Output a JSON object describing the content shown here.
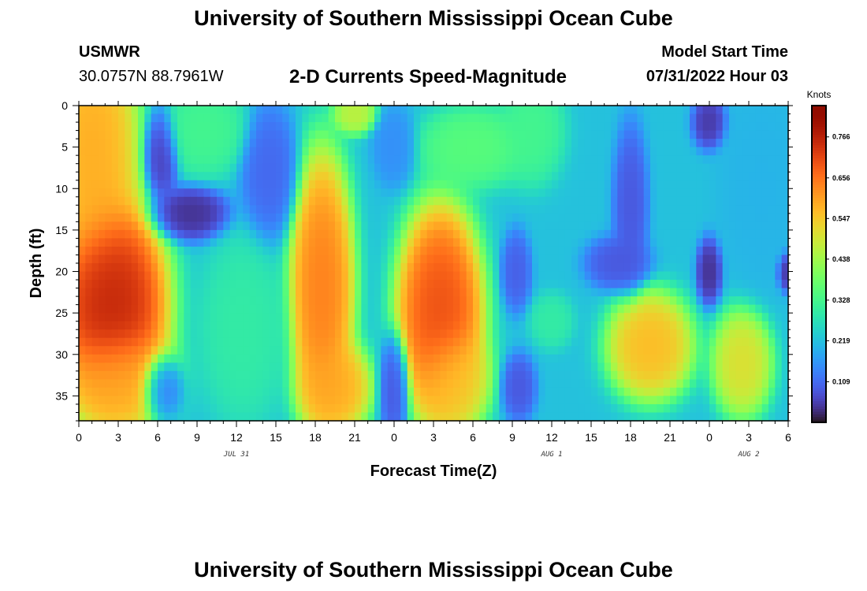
{
  "header": {
    "title": "University of Southern Mississippi Ocean Cube",
    "station": "USMWR",
    "coordinates": "30.0757N  88.7961W",
    "subtitle": "2-D Currents Speed-Magnitude",
    "start_label": "Model Start Time",
    "start_value": "07/31/2022 Hour 03"
  },
  "footer": {
    "title": "University of Southern Mississippi Ocean Cube"
  },
  "chart_data": {
    "type": "heatmap",
    "title": "2-D Currents Speed-Magnitude",
    "xlabel": "Forecast Time(Z)",
    "ylabel": "Depth (ft)",
    "x_tick_labels": [
      "0",
      "3",
      "6",
      "9",
      "12",
      "15",
      "18",
      "21",
      "0",
      "3",
      "6",
      "9",
      "12",
      "15",
      "18",
      "21",
      "0",
      "3",
      "6"
    ],
    "x_hours": [
      0,
      54
    ],
    "y_tick_labels": [
      "0",
      "5",
      "10",
      "15",
      "20",
      "25",
      "30",
      "35"
    ],
    "y_tick_values": [
      0,
      5,
      10,
      15,
      20,
      25,
      30,
      35
    ],
    "ylim": [
      0,
      38
    ],
    "y_inverted": true,
    "date_labels": [
      {
        "text": "JUL 31",
        "hour": 12
      },
      {
        "text": "AUG 1",
        "hour": 36
      },
      {
        "text": "AUG 2",
        "hour": 51
      }
    ],
    "colorbar": {
      "label": "Knots",
      "ticks": [
        "0.766",
        "0.656",
        "0.547",
        "0.438",
        "0.328",
        "0.219",
        "0.109"
      ],
      "tick_values": [
        0.766,
        0.656,
        0.547,
        0.438,
        0.328,
        0.219,
        0.109
      ],
      "range": [
        0.0,
        0.85
      ],
      "colormap": "turbo"
    },
    "features": [
      {
        "hour": 2.5,
        "depth": 24,
        "speed": 0.78,
        "sx": 2.6,
        "sy": 8
      },
      {
        "hour": 1,
        "depth": 5,
        "speed": 0.6,
        "sx": 2.2,
        "sy": 9
      },
      {
        "hour": 3,
        "depth": 33,
        "speed": 0.58,
        "sx": 2.5,
        "sy": 4
      },
      {
        "hour": 6.3,
        "depth": 6,
        "speed": 0.05,
        "sx": 0.8,
        "sy": 3.5
      },
      {
        "hour": 8.5,
        "depth": 13,
        "speed": 0.03,
        "sx": 1.8,
        "sy": 2
      },
      {
        "hour": 6.3,
        "depth": 34,
        "speed": 0.09,
        "sx": 1,
        "sy": 2.5
      },
      {
        "hour": 9.5,
        "depth": 3,
        "speed": 0.33,
        "sx": 2,
        "sy": 3.5
      },
      {
        "hour": 14.5,
        "depth": 8,
        "speed": 0.1,
        "sx": 1.3,
        "sy": 5
      },
      {
        "hour": 21,
        "depth": 1,
        "speed": 0.48,
        "sx": 1,
        "sy": 1.5
      },
      {
        "hour": 18.5,
        "depth": 22,
        "speed": 0.66,
        "sx": 1.5,
        "sy": 10
      },
      {
        "hour": 19.5,
        "depth": 34,
        "speed": 0.6,
        "sx": 1.7,
        "sy": 3.5
      },
      {
        "hour": 12.5,
        "depth": 27,
        "speed": 0.3,
        "sx": 2,
        "sy": 7
      },
      {
        "hour": 24,
        "depth": 34,
        "speed": 0.08,
        "sx": 0.7,
        "sy": 4
      },
      {
        "hour": 24,
        "depth": 5,
        "speed": 0.15,
        "sx": 1,
        "sy": 3
      },
      {
        "hour": 30,
        "depth": 5,
        "speed": 0.36,
        "sx": 2.5,
        "sy": 3
      },
      {
        "hour": 27.5,
        "depth": 25,
        "speed": 0.72,
        "sx": 2,
        "sy": 8
      },
      {
        "hour": 28.5,
        "depth": 33,
        "speed": 0.55,
        "sx": 1.7,
        "sy": 4
      },
      {
        "hour": 33.3,
        "depth": 20,
        "speed": 0.09,
        "sx": 0.7,
        "sy": 3
      },
      {
        "hour": 33.5,
        "depth": 34,
        "speed": 0.08,
        "sx": 0.8,
        "sy": 2.5
      },
      {
        "hour": 36,
        "depth": 26,
        "speed": 0.3,
        "sx": 1,
        "sy": 2
      },
      {
        "hour": 34.5,
        "depth": 3,
        "speed": 0.33,
        "sx": 1.5,
        "sy": 4
      },
      {
        "hour": 41,
        "depth": 19,
        "speed": 0.08,
        "sx": 1.5,
        "sy": 2
      },
      {
        "hour": 42,
        "depth": 12,
        "speed": 0.08,
        "sx": 0.8,
        "sy": 6
      },
      {
        "hour": 43.5,
        "depth": 29,
        "speed": 0.58,
        "sx": 2,
        "sy": 4
      },
      {
        "hour": 48,
        "depth": 20,
        "speed": 0.03,
        "sx": 0.6,
        "sy": 2.5
      },
      {
        "hour": 48,
        "depth": 2,
        "speed": 0.04,
        "sx": 0.8,
        "sy": 2
      },
      {
        "hour": 50.5,
        "depth": 31,
        "speed": 0.52,
        "sx": 1.4,
        "sy": 4
      },
      {
        "hour": 52,
        "depth": 10,
        "speed": 0.2,
        "sx": 2,
        "sy": 8
      },
      {
        "hour": 53.8,
        "depth": 20,
        "speed": 0.03,
        "sx": 0.4,
        "sy": 1.5
      }
    ],
    "background_speed": 0.22
  }
}
